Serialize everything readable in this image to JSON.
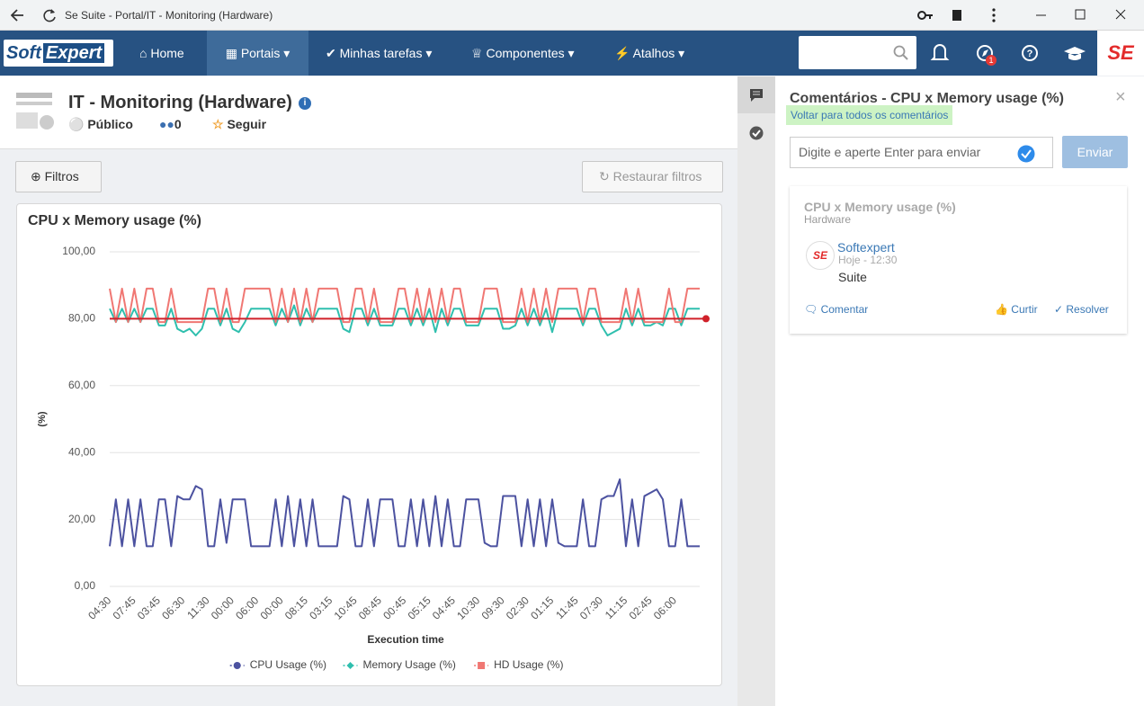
{
  "browser": {
    "title": "Se Suite - Portal/IT - Monitoring (Hardware)"
  },
  "nav": {
    "logo_soft": "Soft",
    "logo_expert": "Expert",
    "items": [
      "Home",
      "Portais",
      "Minhas tarefas",
      "Componentes",
      "Atalhos"
    ],
    "notification_count": 1,
    "brand": "SE"
  },
  "header": {
    "title": "IT - Monitoring (Hardware)",
    "visibility": "Público",
    "members": 0,
    "follow": "Seguir"
  },
  "toolbar": {
    "filters": "Filtros",
    "reset": "Restaurar filtros"
  },
  "chart_data": {
    "type": "line",
    "title": "CPU x Memory usage (%)",
    "x_label": "Execution time",
    "y_label": "(%)",
    "categories": [
      "04:30",
      null,
      null,
      null,
      "07:45",
      null,
      null,
      null,
      "03:45",
      null,
      null,
      null,
      "06:30",
      null,
      null,
      null,
      "11:30",
      null,
      null,
      null,
      "00:00",
      null,
      null,
      null,
      "06:00",
      null,
      null,
      null,
      "00:00",
      null,
      null,
      null,
      "08:15",
      null,
      null,
      null,
      "03:15",
      null,
      null,
      null,
      "10:45",
      null,
      null,
      null,
      "08:45",
      null,
      null,
      null,
      "00:45",
      null,
      null,
      null,
      "05:15",
      null,
      null,
      null,
      "04:45",
      null,
      null,
      null,
      "10:30",
      null,
      null,
      null,
      "09:30",
      null,
      null,
      null,
      "02:30",
      null,
      null,
      null,
      "01:15",
      null,
      null,
      null,
      "11:45",
      null,
      null,
      null,
      "07:30",
      null,
      null,
      null,
      "11:15",
      null,
      null,
      null,
      "02:45",
      null,
      null,
      null,
      "06:00",
      null,
      null,
      null,
      null
    ],
    "series": [
      {
        "name": "CPU Usage (%)",
        "color": "#4c52a0",
        "marker": "circle",
        "values": [
          12,
          26,
          12,
          26,
          12,
          26,
          12,
          12,
          26,
          26,
          12,
          27,
          26,
          26,
          30,
          29,
          12,
          12,
          26,
          13,
          26,
          26,
          26,
          12,
          12,
          12,
          12,
          26,
          12,
          27,
          12,
          26,
          12,
          26,
          12,
          12,
          12,
          12,
          27,
          26,
          12,
          12,
          26,
          12,
          26,
          26,
          26,
          12,
          12,
          26,
          12,
          26,
          12,
          27,
          12,
          26,
          12,
          12,
          26,
          26,
          26,
          13,
          12,
          12,
          27,
          27,
          27,
          12,
          26,
          12,
          26,
          12,
          26,
          13,
          12,
          12,
          12,
          26,
          12,
          12,
          26,
          27,
          27,
          32,
          12,
          26,
          12,
          27,
          28,
          29,
          26,
          12,
          12,
          26,
          12,
          12,
          12
        ]
      },
      {
        "name": "Memory Usage (%)",
        "color": "#2fbfae",
        "marker": "diamond",
        "values": [
          83,
          79,
          83,
          79,
          83,
          79,
          83,
          83,
          78,
          78,
          83,
          77,
          76,
          77,
          75,
          77,
          83,
          83,
          78,
          83,
          77,
          76,
          79,
          83,
          83,
          83,
          83,
          78,
          83,
          79,
          84,
          78,
          83,
          79,
          83,
          83,
          83,
          83,
          77,
          76,
          83,
          83,
          78,
          83,
          78,
          78,
          78,
          83,
          83,
          78,
          83,
          78,
          83,
          76,
          83,
          78,
          83,
          83,
          78,
          78,
          78,
          83,
          83,
          83,
          77,
          77,
          78,
          83,
          78,
          83,
          78,
          83,
          76,
          83,
          83,
          83,
          83,
          78,
          83,
          83,
          78,
          75,
          76,
          77,
          83,
          78,
          83,
          78,
          78,
          79,
          78,
          83,
          83,
          78,
          83,
          83,
          83
        ]
      },
      {
        "name": "HD Usage (%)",
        "color": "#f07773",
        "marker": "square",
        "values": [
          89,
          79,
          89,
          79,
          89,
          79,
          89,
          89,
          79,
          79,
          89,
          79,
          79,
          79,
          79,
          79,
          89,
          89,
          79,
          89,
          79,
          79,
          89,
          89,
          89,
          89,
          89,
          79,
          89,
          79,
          89,
          79,
          89,
          79,
          89,
          89,
          89,
          89,
          79,
          79,
          89,
          89,
          79,
          89,
          79,
          79,
          79,
          89,
          89,
          79,
          89,
          79,
          89,
          79,
          89,
          79,
          89,
          89,
          79,
          79,
          79,
          89,
          89,
          89,
          79,
          79,
          79,
          89,
          79,
          89,
          79,
          89,
          79,
          89,
          89,
          89,
          89,
          79,
          89,
          89,
          79,
          79,
          79,
          79,
          89,
          79,
          89,
          79,
          79,
          79,
          79,
          89,
          79,
          79,
          89,
          89,
          89
        ]
      }
    ],
    "reference_line": {
      "value": 80,
      "color": "#d0212a"
    },
    "ylim": [
      0,
      100
    ],
    "yticks": [
      {
        "value": 0,
        "label": "0,00"
      },
      {
        "value": 20,
        "label": "20,00"
      },
      {
        "value": 40,
        "label": "40,00"
      },
      {
        "value": 60,
        "label": "60,00"
      },
      {
        "value": 80,
        "label": "80,00"
      },
      {
        "value": 100,
        "label": "100,00"
      }
    ],
    "grid": true
  },
  "comments": {
    "title": "Comentários - CPU x Memory usage (%)",
    "back": "Voltar para todos os comentários",
    "input_placeholder": "Digite e aperte Enter para enviar",
    "send": "Enviar",
    "card": {
      "title": "CPU x Memory usage (%)",
      "subtitle": "Hardware",
      "author": "Softexpert",
      "time": "Hoje - 12:30",
      "text": "Suite",
      "comment": "Comentar",
      "like": "Curtir",
      "resolve": "Resolver"
    }
  }
}
